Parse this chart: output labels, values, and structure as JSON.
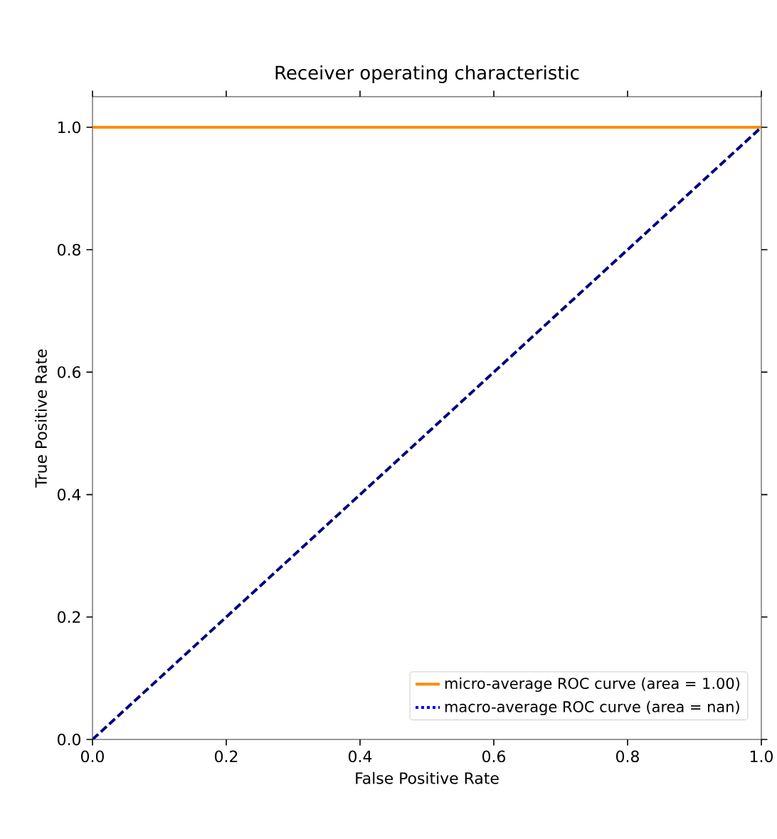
{
  "chart_data": {
    "type": "line",
    "title": "Receiver operating characteristic",
    "xlabel": "False Positive Rate",
    "ylabel": "True Positive Rate",
    "x": [
      0,
      1
    ],
    "series": [
      {
        "name": "micro-average ROC curve (area = 1.00)",
        "color": "#ff8c00",
        "values": [
          1,
          1
        ],
        "line_style": "solid"
      },
      {
        "name": "macro-average ROC curve (area = nan)",
        "color": "#0000ff",
        "values": [
          null,
          null
        ],
        "line_style": "dotted"
      },
      {
        "color": "#000080",
        "values": [
          0,
          1
        ],
        "line_style": "dashed"
      }
    ],
    "xlim": [
      0,
      1
    ],
    "ylim": [
      0,
      1.05
    ],
    "xticks": [
      {
        "value": 0,
        "label": "0.0"
      },
      0.2,
      0.4,
      0.6,
      0.8,
      {
        "value": 1,
        "label": "1.0"
      }
    ],
    "yticks": [
      {
        "value": 0,
        "label": "0.0"
      },
      0.2,
      0.4,
      0.6,
      0.8,
      {
        "value": 1,
        "label": "1.0"
      }
    ],
    "legend": "bottom right",
    "grid": false,
    "marker": "none"
  }
}
